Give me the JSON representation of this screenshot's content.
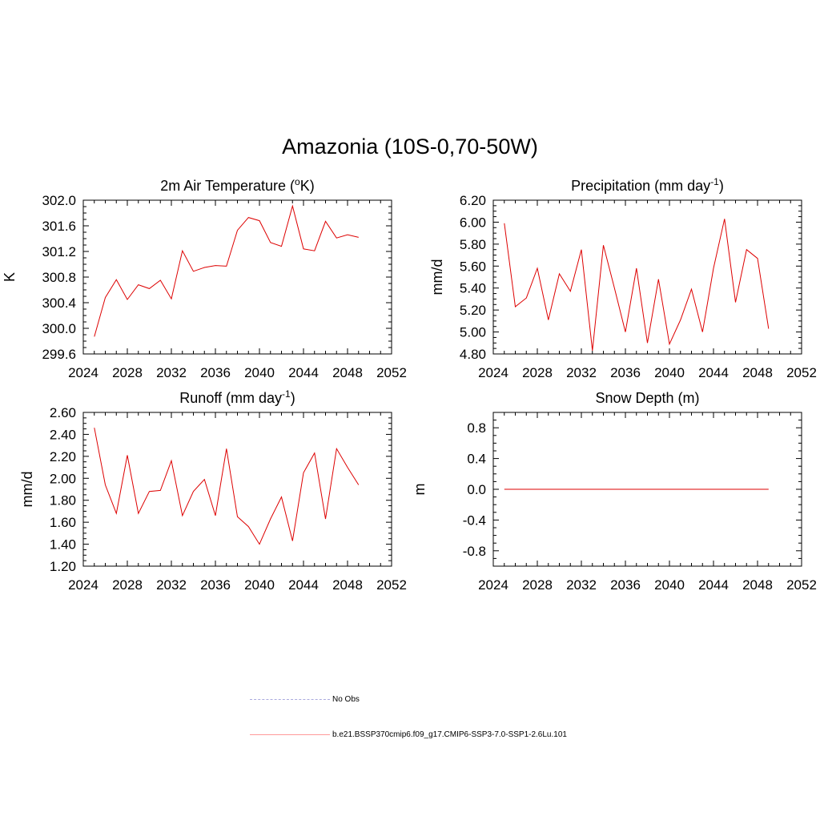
{
  "title": "Amazonia (10S-0,70-50W)",
  "legend": [
    {
      "label": "No Obs",
      "color": "#aaaadd",
      "dash": "dashed"
    },
    {
      "label": "b.e21.BSSP370cmip6.f09_g17.CMIP6-SSP3-7.0-SSP1-2.6Lu.101",
      "color": "#ff9999",
      "dash": "solid"
    }
  ],
  "chart_data": [
    {
      "type": "line",
      "title": "2m Air Temperature (oK)",
      "ylabel": "K",
      "xlim": [
        2024,
        2052
      ],
      "ylim": [
        299.6,
        302.0
      ],
      "xticks": [
        2024,
        2028,
        2032,
        2036,
        2040,
        2044,
        2048,
        2052
      ],
      "yticks": [
        "299.6",
        "300.0",
        "300.4",
        "300.8",
        "301.2",
        "301.6",
        "302.0"
      ],
      "series": [
        {
          "color": "#dd0000",
          "x": [
            2025,
            2026,
            2027,
            2028,
            2029,
            2030,
            2031,
            2032,
            2033,
            2034,
            2035,
            2036,
            2037,
            2038,
            2039,
            2040,
            2041,
            2042,
            2043,
            2044,
            2045,
            2046,
            2047,
            2048,
            2049
          ],
          "values": [
            299.87,
            300.48,
            300.76,
            300.45,
            300.68,
            300.62,
            300.75,
            300.46,
            301.21,
            300.89,
            300.95,
            300.98,
            300.97,
            301.53,
            301.73,
            301.68,
            301.34,
            301.28,
            301.91,
            301.24,
            301.21,
            301.67,
            301.41,
            301.46,
            301.42
          ]
        }
      ]
    },
    {
      "type": "line",
      "title": "Precipitation (mm day-1)",
      "ylabel": "mm/d",
      "xlim": [
        2024,
        2052
      ],
      "ylim": [
        4.8,
        6.2
      ],
      "xticks": [
        2024,
        2028,
        2032,
        2036,
        2040,
        2044,
        2048,
        2052
      ],
      "yticks": [
        "4.80",
        "5.00",
        "5.20",
        "5.40",
        "5.60",
        "5.80",
        "6.00",
        "6.20"
      ],
      "series": [
        {
          "color": "#dd0000",
          "x": [
            2025,
            2026,
            2027,
            2028,
            2029,
            2030,
            2031,
            2032,
            2033,
            2034,
            2035,
            2036,
            2037,
            2038,
            2039,
            2040,
            2041,
            2042,
            2043,
            2044,
            2045,
            2046,
            2047,
            2048,
            2049
          ],
          "values": [
            5.99,
            5.23,
            5.31,
            5.58,
            5.11,
            5.53,
            5.37,
            5.75,
            4.83,
            5.79,
            5.4,
            5.0,
            5.58,
            4.9,
            5.48,
            4.89,
            5.11,
            5.39,
            5.0,
            5.58,
            6.03,
            5.27,
            5.75,
            5.67,
            5.03
          ]
        }
      ]
    },
    {
      "type": "line",
      "title": "Runoff (mm day-1)",
      "ylabel": "mm/d",
      "xlim": [
        2024,
        2052
      ],
      "ylim": [
        1.2,
        2.6
      ],
      "xticks": [
        2024,
        2028,
        2032,
        2036,
        2040,
        2044,
        2048,
        2052
      ],
      "yticks": [
        "1.20",
        "1.40",
        "1.60",
        "1.80",
        "2.00",
        "2.20",
        "2.40",
        "2.60"
      ],
      "series": [
        {
          "color": "#dd0000",
          "x": [
            2025,
            2026,
            2027,
            2028,
            2029,
            2030,
            2031,
            2032,
            2033,
            2034,
            2035,
            2036,
            2037,
            2038,
            2039,
            2040,
            2041,
            2042,
            2043,
            2044,
            2045,
            2046,
            2047,
            2048,
            2049
          ],
          "values": [
            2.46,
            1.94,
            1.68,
            2.21,
            1.68,
            1.88,
            1.89,
            2.16,
            1.66,
            1.88,
            1.99,
            1.66,
            2.27,
            1.65,
            1.56,
            1.4,
            1.63,
            1.83,
            1.43,
            2.05,
            2.23,
            1.63,
            2.27,
            2.1,
            1.94
          ]
        }
      ]
    },
    {
      "type": "line",
      "title": "Snow Depth (m)",
      "ylabel": "m",
      "xlim": [
        2024,
        2052
      ],
      "ylim": [
        -1.0,
        1.0
      ],
      "xticks": [
        2024,
        2028,
        2032,
        2036,
        2040,
        2044,
        2048,
        2052
      ],
      "yticks": [
        "-0.8",
        "-0.4",
        "0.0",
        "0.4",
        "0.8"
      ],
      "series": [
        {
          "color": "#dd0000",
          "x": [
            2025,
            2026,
            2027,
            2028,
            2029,
            2030,
            2031,
            2032,
            2033,
            2034,
            2035,
            2036,
            2037,
            2038,
            2039,
            2040,
            2041,
            2042,
            2043,
            2044,
            2045,
            2046,
            2047,
            2048,
            2049
          ],
          "values": [
            0,
            0,
            0,
            0,
            0,
            0,
            0,
            0,
            0,
            0,
            0,
            0,
            0,
            0,
            0,
            0,
            0,
            0,
            0,
            0,
            0,
            0,
            0,
            0,
            0
          ]
        }
      ]
    }
  ]
}
